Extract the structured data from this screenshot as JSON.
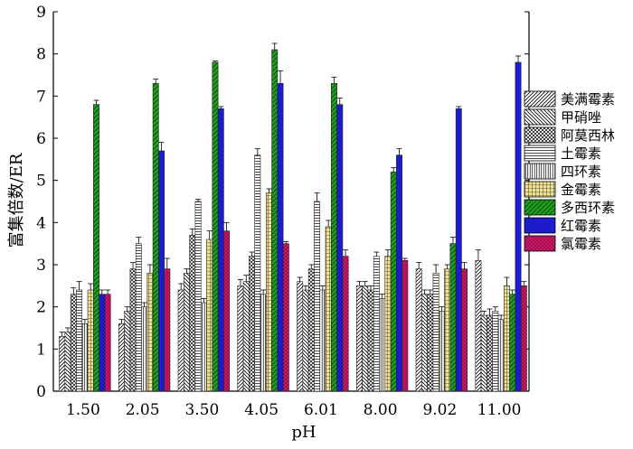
{
  "chart_data": {
    "type": "bar",
    "xlabel": "pH",
    "ylabel": "富集倍数/ER",
    "ylim": [
      0,
      9
    ],
    "yticks": [
      "0",
      "1",
      "2",
      "3",
      "4",
      "5",
      "6",
      "7",
      "8",
      "9"
    ],
    "categories": [
      "1.50",
      "2.05",
      "3.50",
      "4.05",
      "6.01",
      "8.00",
      "9.02",
      "11.00"
    ],
    "legend_position": "right",
    "error_bars": true,
    "series": [
      {
        "name": "美满霉素",
        "pattern": "diag-fwd",
        "color": "#000000",
        "values": [
          1.3,
          1.6,
          2.4,
          2.5,
          2.6,
          2.5,
          2.9,
          3.1
        ],
        "errors": [
          0.1,
          0.1,
          0.15,
          0.15,
          0.1,
          0.1,
          0.15,
          0.25
        ]
      },
      {
        "name": "甲硝唑",
        "pattern": "diag-back",
        "color": "#000000",
        "values": [
          1.4,
          1.9,
          2.8,
          2.6,
          2.4,
          2.5,
          2.3,
          1.8
        ],
        "errors": [
          0.1,
          0.1,
          0.1,
          0.15,
          0.1,
          0.1,
          0.1,
          0.1
        ]
      },
      {
        "name": "阿莫西林",
        "pattern": "crosshatch",
        "color": "#000000",
        "values": [
          2.3,
          2.9,
          3.7,
          3.2,
          2.9,
          2.4,
          2.3,
          1.8
        ],
        "errors": [
          0.15,
          0.15,
          0.15,
          0.1,
          0.1,
          0.1,
          0.1,
          0.15
        ]
      },
      {
        "name": "土霉素",
        "pattern": "horizontal",
        "color": "#000000",
        "values": [
          2.4,
          3.5,
          4.5,
          5.6,
          4.5,
          3.2,
          2.8,
          1.9
        ],
        "errors": [
          0.2,
          0.15,
          0.05,
          0.15,
          0.2,
          0.1,
          0.2,
          0.1
        ]
      },
      {
        "name": "四环素",
        "pattern": "vertical",
        "color": "#000000",
        "values": [
          1.6,
          2.0,
          2.1,
          2.3,
          2.4,
          2.2,
          1.9,
          1.7
        ],
        "errors": [
          0.1,
          0.1,
          0.1,
          0.1,
          0.1,
          0.1,
          0.1,
          0.1
        ]
      },
      {
        "name": "金霉素",
        "pattern": "grid",
        "color": "#f2e38a",
        "values": [
          2.4,
          2.8,
          3.6,
          4.7,
          3.9,
          3.2,
          2.9,
          2.5
        ],
        "errors": [
          0.15,
          0.2,
          0.2,
          0.1,
          0.15,
          0.15,
          0.1,
          0.2
        ]
      },
      {
        "name": "多西环素",
        "pattern": "diag-green",
        "color": "#1f9a1f",
        "values": [
          6.8,
          7.3,
          7.8,
          8.1,
          7.3,
          5.2,
          3.5,
          2.3
        ],
        "errors": [
          0.1,
          0.1,
          0.03,
          0.15,
          0.15,
          0.1,
          0.15,
          0.1
        ]
      },
      {
        "name": "红霉素",
        "pattern": "solid-blue",
        "color": "#1c1ccc",
        "values": [
          2.3,
          5.7,
          6.7,
          7.3,
          6.8,
          5.6,
          6.7,
          7.8
        ],
        "errors": [
          0.1,
          0.2,
          0.05,
          0.3,
          0.15,
          0.15,
          0.05,
          0.15
        ]
      },
      {
        "name": "氯霉素",
        "pattern": "magenta-hatch",
        "color": "#d6186e",
        "values": [
          2.3,
          2.9,
          3.8,
          3.5,
          3.2,
          3.1,
          2.9,
          2.5
        ],
        "errors": [
          0.1,
          0.25,
          0.2,
          0.05,
          0.15,
          0.05,
          0.15,
          0.1
        ]
      }
    ]
  }
}
